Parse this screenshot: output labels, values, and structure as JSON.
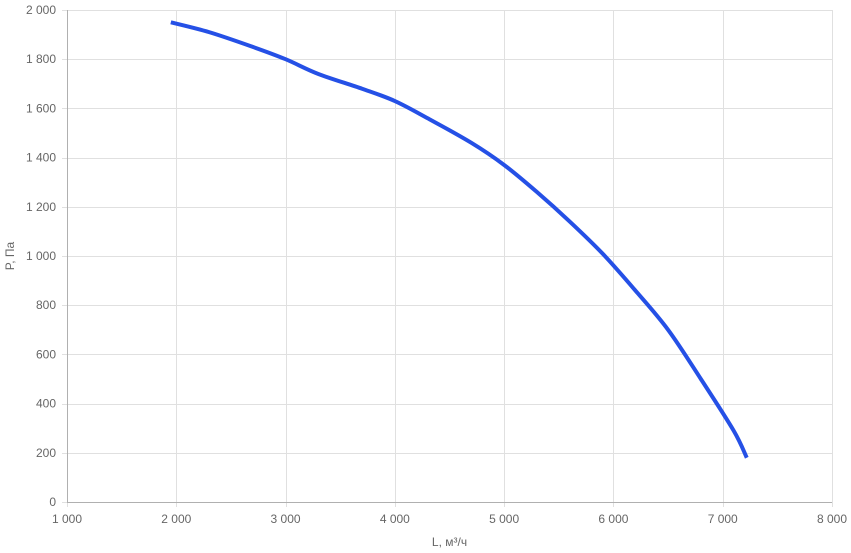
{
  "chart_data": {
    "type": "line",
    "xlabel": "L, м³/ч",
    "ylabel": "P, Па",
    "xlim": [
      1000,
      8000
    ],
    "ylim": [
      0,
      2000
    ],
    "x_ticks": [
      1000,
      2000,
      3000,
      4000,
      5000,
      6000,
      7000,
      8000
    ],
    "x_tick_labels": [
      "1 000",
      "2 000",
      "3 000",
      "4 000",
      "5 000",
      "6 000",
      "7 000",
      "8 000"
    ],
    "y_ticks": [
      0,
      200,
      400,
      600,
      800,
      1000,
      1200,
      1400,
      1600,
      1800,
      2000
    ],
    "y_tick_labels": [
      "0",
      "200",
      "400",
      "600",
      "800",
      "1 000",
      "1 200",
      "1 400",
      "1 600",
      "1 800",
      "2 000"
    ],
    "grid": true,
    "series": [
      {
        "x": [
          1950,
          2300,
          2700,
          3000,
          3300,
          3700,
          4000,
          4300,
          4700,
          5000,
          5300,
          5600,
          5900,
          6200,
          6500,
          6800,
          7100,
          7220
        ],
        "y": [
          1950,
          1910,
          1850,
          1800,
          1740,
          1680,
          1630,
          1560,
          1460,
          1370,
          1260,
          1140,
          1010,
          860,
          700,
          500,
          290,
          180
        ]
      }
    ],
    "colors": {
      "line": "#2550e6",
      "grid": "#e0e0e0",
      "axis": "#b0b0b0",
      "text": "#666666"
    }
  }
}
